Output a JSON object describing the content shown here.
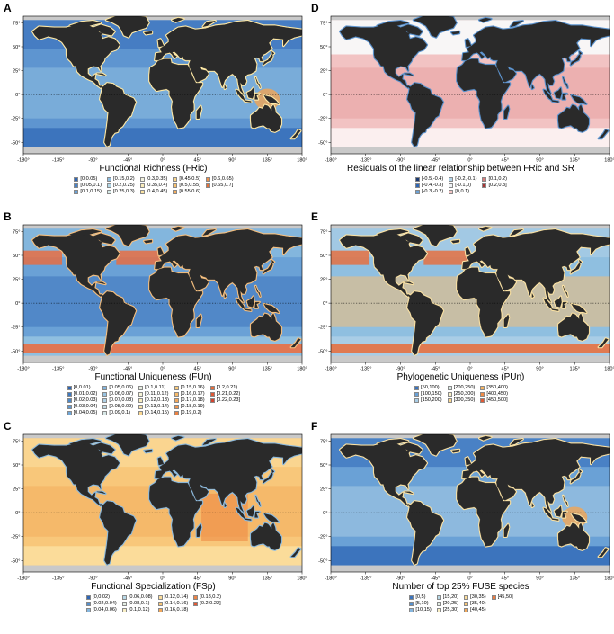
{
  "xticks": [
    "-180°",
    "-135°",
    "-90°",
    "-45°",
    "0°",
    "45°",
    "90°",
    "135°",
    "180°"
  ],
  "yticks": [
    "75°",
    "50°",
    "25°",
    "0°",
    "-25°",
    "-50°"
  ],
  "panels": [
    {
      "id": "A",
      "title": "Functional Richness (FRic)",
      "colors": {
        "ocean_low": "#3c74bd",
        "ocean_mid": "#5e95d0",
        "ocean_hi": "#8fbfe0",
        "coast": "#ffe9a6",
        "hot": "#f3a552"
      },
      "legend": [
        "[0,0.05)",
        "[0.05,0.1)",
        "[0.1,0.15)",
        "[0.15,0.2)",
        "[0.2,0.25)",
        "[0.25,0.3)",
        "[0.3,0.35)",
        "[0.35,0.4)",
        "[0.4,0.45)",
        "[0.45,0.5)",
        "[0.5,0.55)",
        "[0.55,0.6)",
        "[0.6,0.65)",
        "[0.65,0.7]"
      ],
      "legend_colors": [
        "#2f66b4",
        "#4a83c6",
        "#6aa1d6",
        "#8fbcdf",
        "#b2d6e6",
        "#d6ebe8",
        "#f3f3e0",
        "#f9ecbc",
        "#fbe3a1",
        "#fbd588",
        "#f9c26f",
        "#f6ad5b",
        "#f0914a",
        "#e3713a"
      ]
    },
    {
      "id": "B",
      "title": "Functional Uniqueness (FUn)",
      "colors": {
        "ocean_low": "#8fbfe0",
        "ocean_mid": "#6aa1d6",
        "ocean_hi": "#3c74bd",
        "coast": "#f6c080",
        "hot": "#ef6a3a"
      },
      "legend": [
        "[0,0.01)",
        "[0.01,0.02)",
        "[0.02,0.03)",
        "[0.03,0.04)",
        "[0.04,0.05)",
        "[0.05,0.06)",
        "[0.06,0.07)",
        "[0.07,0.08)",
        "[0.08,0.09)",
        "[0.09,0.1)",
        "[0.1,0.11)",
        "[0.11,0.12)",
        "[0.12,0.13)",
        "[0.13,0.14)",
        "[0.14,0.15)",
        "[0.15,0.16)",
        "[0.16,0.17)",
        "[0.17,0.18)",
        "[0.18,0.19)",
        "[0.19,0.2)",
        "[0.2,0.21)",
        "[0.21,0.22)",
        "[0.22,0.23]"
      ],
      "legend_colors": [
        "#2f66b4",
        "#3e79c0",
        "#4d89c9",
        "#5e98d1",
        "#70a7d8",
        "#84b5de",
        "#98c3e2",
        "#aed0e5",
        "#c3dce6",
        "#d7e7e6",
        "#e9f0e2",
        "#f6f3d6",
        "#faeebf",
        "#fbe4a8",
        "#fbd891",
        "#f9ca7c",
        "#f7ba69",
        "#f4a85a",
        "#f0954d",
        "#eb8143",
        "#e66c3b",
        "#de5734",
        "#d2432f"
      ]
    },
    {
      "id": "C",
      "title": "Functional Specialization (FSp)",
      "colors": {
        "ocean_low": "#fbdc9a",
        "ocean_mid": "#f8c77a",
        "ocean_hi": "#f3ad5c",
        "coast": "#8fbcdf",
        "hot": "#ef8a45"
      },
      "legend": [
        "[0,0.02)",
        "[0.02,0.04)",
        "[0.04,0.06)",
        "[0.06,0.08)",
        "[0.08,0.1)",
        "[0.1,0.12)",
        "[0.12,0.14)",
        "[0.14,0.16)",
        "[0.16,0.18)",
        "[0.18,0.2)",
        "[0.2,0.22]"
      ],
      "legend_colors": [
        "#2f66b4",
        "#5690cd",
        "#86b6de",
        "#b8d8e6",
        "#e4eee4",
        "#f9efc5",
        "#fbdd9c",
        "#f8c677",
        "#f3a95b",
        "#ec8447",
        "#e05a36"
      ]
    },
    {
      "id": "D",
      "title": "Residuals of the linear relationship between FRic and SR",
      "colors": {
        "ocean_low": "#fbefef",
        "ocean_mid": "#f2c3c3",
        "ocean_hi": "#e8a0a0",
        "coast": "#5e95d0",
        "hot": "#b13a3a"
      },
      "legend": [
        "[-0.5,-0.4)",
        "[-0.4,-0.3)",
        "[-0.3,-0.2)",
        "[-0.2,-0.1)",
        "[-0.1,0)",
        "[0,0.1)",
        "[0.1,0.2)",
        "[0.2,0.3]"
      ],
      "legend_colors": [
        "#1c3a73",
        "#2f66b4",
        "#6aa1d6",
        "#b2d3e8",
        "#f0f3f6",
        "#f2c3c3",
        "#d97b7b",
        "#a83434"
      ]
    },
    {
      "id": "E",
      "title": "Phylogenetic Uniqueness (PUn)",
      "colors": {
        "ocean_low": "#a9cde6",
        "ocean_mid": "#8fbfe0",
        "ocean_hi": "#f5bd74",
        "coast": "#fbe2a4",
        "hot": "#ea6b37"
      },
      "legend": [
        "[50,100)",
        "[100,150)",
        "[150,200)",
        "[200,250)",
        "[250,300)",
        "[300,350)",
        "[350,400)",
        "[400,450)",
        "[450,500]"
      ],
      "legend_colors": [
        "#3c74bd",
        "#6aa1d6",
        "#a9cde6",
        "#dcece8",
        "#f9efc5",
        "#fbd890",
        "#f6b563",
        "#ef8a45",
        "#e05a36"
      ]
    },
    {
      "id": "F",
      "title": "Number of top 25% FUSE species",
      "colors": {
        "ocean_low": "#3c74bd",
        "ocean_mid": "#6aa1d6",
        "ocean_hi": "#a9cde6",
        "coast": "#fbe2a4",
        "hot": "#f3a552"
      },
      "legend": [
        "[0,5)",
        "[5,10)",
        "[10,15)",
        "[15,20)",
        "[20,25)",
        "[25,30)",
        "[30,35)",
        "[35,40)",
        "[40,45)",
        "[45,50]"
      ],
      "legend_colors": [
        "#3c74bd",
        "#5690cd",
        "#86b6de",
        "#b8d8e6",
        "#e4eee4",
        "#f9efc5",
        "#fbdd9c",
        "#f8c677",
        "#f3a95b",
        "#ec7c42"
      ]
    }
  ]
}
